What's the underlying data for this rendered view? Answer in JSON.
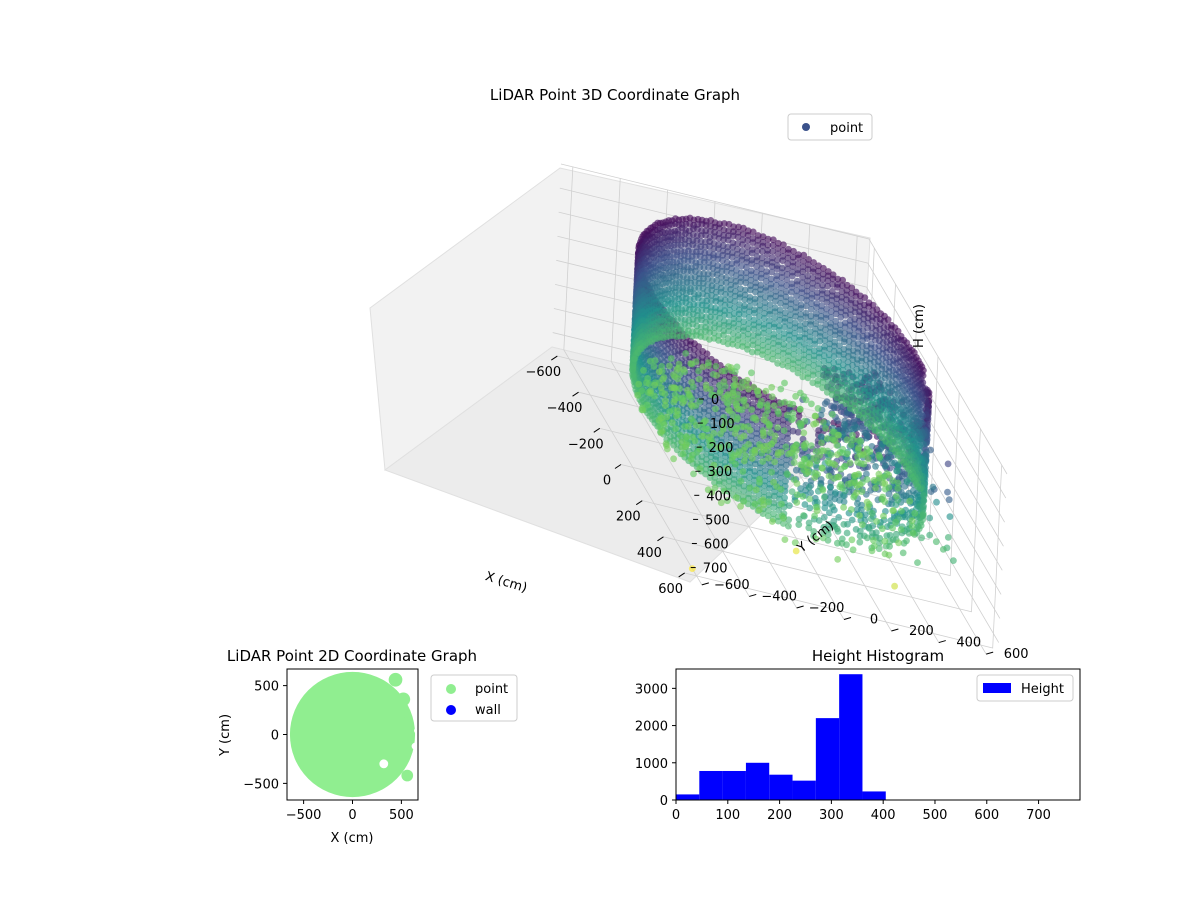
{
  "chart_data": [
    {
      "type": "scatter3d",
      "title": "LiDAR Point 3D Coordinate Graph",
      "xlabel": "X (cm)",
      "ylabel": "Y (cm)",
      "zlabel": "H (cm)",
      "xticks": [
        -600,
        -400,
        -200,
        0,
        200,
        400,
        600
      ],
      "yticks": [
        -600,
        -400,
        -200,
        0,
        200,
        400,
        600
      ],
      "zticks": [
        0,
        100,
        200,
        300,
        400,
        500,
        600,
        700
      ],
      "xlim": [
        -650,
        650
      ],
      "ylim": [
        -650,
        650
      ],
      "zlim": [
        0,
        760
      ],
      "z_inverted": true,
      "legend": {
        "position": "top-right",
        "entries": [
          {
            "label": "point",
            "color": "#3b528b"
          }
        ]
      },
      "colormap": "viridis",
      "grid": true
    },
    {
      "type": "scatter",
      "title": "LiDAR Point 2D Coordinate Graph",
      "xlabel": "X (cm)",
      "ylabel": "Y (cm)",
      "xticks": [
        -500,
        0,
        500
      ],
      "yticks": [
        -500,
        0,
        500
      ],
      "xlim": [
        -670,
        670
      ],
      "ylim": [
        -670,
        670
      ],
      "series": [
        {
          "name": "point",
          "color": "#90ee90"
        },
        {
          "name": "wall",
          "color": "#0000ff"
        }
      ],
      "legend": {
        "position": "outside-right"
      }
    },
    {
      "type": "bar",
      "title": "Height Histogram",
      "xticks": [
        0,
        100,
        200,
        300,
        400,
        500,
        600,
        700
      ],
      "yticks": [
        0,
        1000,
        2000,
        3000
      ],
      "xlim": [
        0,
        780
      ],
      "ylim": [
        0,
        3520
      ],
      "bin_edges": [
        0,
        45,
        90,
        135,
        180,
        225,
        270,
        315,
        360,
        405
      ],
      "values": [
        150,
        780,
        780,
        1000,
        680,
        520,
        2200,
        3380,
        230
      ],
      "series": [
        {
          "name": "Height",
          "color": "#0000ff"
        }
      ],
      "legend": {
        "position": "top-right"
      }
    }
  ]
}
